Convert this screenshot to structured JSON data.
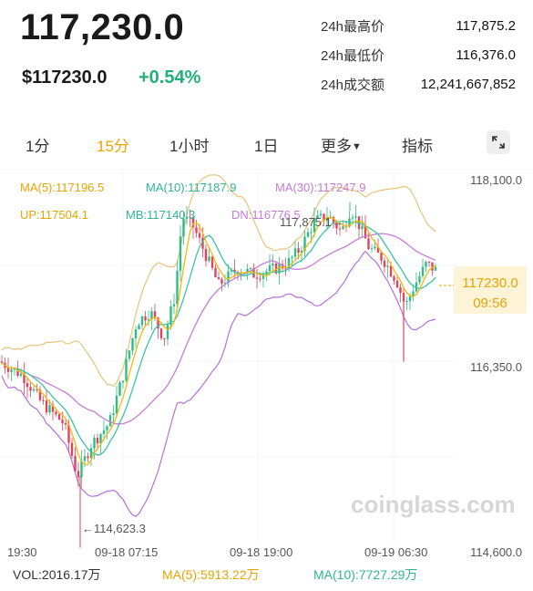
{
  "header": {
    "price": "117,230.0",
    "usd_price": "$117230.0",
    "change": "+0.54%"
  },
  "stats": [
    {
      "label": "24h最高价",
      "value": "117,875.2"
    },
    {
      "label": "24h最低价",
      "value": "116,376.0"
    },
    {
      "label": "24h成交额",
      "value": "12,241,667,852"
    }
  ],
  "tabs": [
    "1分",
    "15分",
    "1小时",
    "1日",
    "更多",
    "指标"
  ],
  "active_tab": "15分",
  "ma_legend": {
    "ma5": "MA(5):117196.5",
    "ma10": "MA(10):117187.9",
    "ma30": "MA(30):117247.9"
  },
  "boll_legend": {
    "up": "UP:117504.1",
    "mb": "MB:117140.3",
    "dn": "DN:116776.5"
  },
  "chart_data": {
    "type": "candlestick",
    "y_axis_labels": [
      "118,100.0",
      "116,350.0",
      "114,600.0"
    ],
    "x_axis_labels": [
      "19:30",
      "09-18 07:15",
      "09-18 19:00",
      "09-19 06:30"
    ],
    "high_marker": "117,875.1→",
    "low_marker": "←114,623.3",
    "current_price": "117230.0",
    "countdown": "09:56",
    "colors": {
      "up": "#2ebd85",
      "down": "#e2435a",
      "ma5": "#f0b90b",
      "ma10": "#3bc4a0",
      "ma30": "#c87bd9",
      "boll_up": "#e6c47a",
      "boll_dn": "#b66fdb"
    }
  },
  "watermark": "coinglass.com",
  "volume": {
    "vol": "VOL:2016.17万",
    "ma5": "MA(5):5913.22万",
    "ma10": "MA(10):7727.29万"
  }
}
